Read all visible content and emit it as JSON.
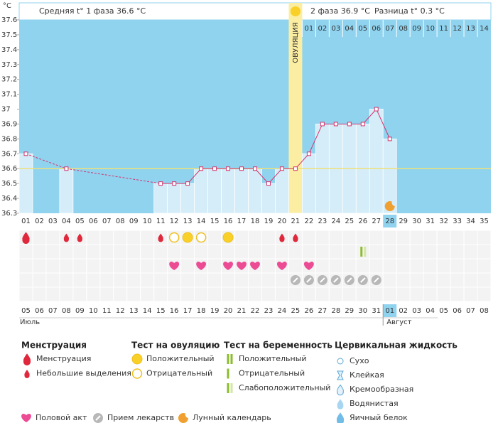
{
  "header": {
    "phase1": "Средняя t° 1 фаза 36.6 °C",
    "phase2": "2 фаза 36.9 °C",
    "diff": "Разница t° 0.3 °C"
  },
  "chart_data": {
    "type": "line",
    "y_unit": "°C",
    "ovulation_label": "ОВУЛЯЦИЯ",
    "categories": [
      "01",
      "02",
      "03",
      "04",
      "05",
      "06",
      "07",
      "08",
      "09",
      "10",
      "11",
      "12",
      "13",
      "14",
      "15",
      "16",
      "17",
      "18",
      "19",
      "20",
      "21",
      "22",
      "23",
      "24",
      "25",
      "26",
      "27",
      "28",
      "29",
      "30",
      "31",
      "32",
      "33",
      "34",
      "35"
    ],
    "dpo": [
      null,
      null,
      null,
      null,
      null,
      null,
      null,
      null,
      null,
      null,
      null,
      null,
      null,
      null,
      null,
      null,
      null,
      null,
      null,
      null,
      null,
      "01",
      "02",
      "03",
      "04",
      "05",
      "06",
      "07",
      "08",
      "09",
      "10",
      "11",
      "12",
      "13",
      "14"
    ],
    "values": [
      36.7,
      null,
      null,
      36.6,
      null,
      null,
      null,
      null,
      null,
      null,
      36.5,
      36.5,
      36.5,
      36.6,
      36.6,
      36.6,
      36.6,
      36.6,
      36.5,
      36.6,
      36.6,
      36.7,
      36.9,
      36.9,
      36.9,
      36.9,
      37,
      36.8,
      null,
      null,
      null,
      null,
      null,
      null,
      null
    ],
    "ylim": [
      36.3,
      37.6
    ],
    "yticks": [
      36.3,
      36.4,
      36.5,
      36.6,
      36.7,
      36.8,
      36.9,
      37,
      37.1,
      37.2,
      37.3,
      37.4,
      37.5,
      37.6
    ],
    "coverline": 36.6,
    "ovulation_category": "21",
    "today_category": "28",
    "colors": {
      "sky": "#8fd3ef",
      "bar": "#d4edf9",
      "line": "#d6336c",
      "ovulation": "#fbeea3",
      "coverline": "#efe07a"
    },
    "dates": [
      "05",
      "06",
      "07",
      "08",
      "09",
      {
        "label": "10",
        "color": "#cc0033"
      },
      {
        "label": "11",
        "color": "#cc0033"
      },
      "12",
      "13",
      "14",
      "15",
      "16",
      {
        "label": "17",
        "color": "#cc0033"
      },
      {
        "label": "18",
        "color": "#cc0033"
      },
      "19",
      "20",
      "21",
      "22",
      "23",
      {
        "label": "24",
        "color": "#cc0033"
      },
      {
        "label": "25",
        "color": "#cc0033"
      },
      "26",
      "27",
      "28",
      "29",
      "30",
      {
        "label": "31",
        "color": "#cc0033"
      },
      "01",
      "02",
      "03",
      "04",
      "05",
      "06",
      {
        "label": "07",
        "color": "#cc0033"
      },
      {
        "label": "08",
        "color": "#cc0033"
      }
    ],
    "months": [
      {
        "label": "Июль",
        "at": "01"
      },
      {
        "label": "Август",
        "at": "28"
      }
    ]
  },
  "marks": {
    "menstruation": [
      0,
      null,
      null,
      1,
      1,
      null,
      null,
      null,
      null,
      null,
      1,
      null,
      null,
      null,
      null,
      null,
      null,
      null,
      null,
      1,
      1,
      null,
      null,
      null,
      null,
      null,
      null,
      null,
      null,
      null,
      null,
      null,
      null,
      null,
      null
    ],
    "ovulation_test": [
      null,
      null,
      null,
      null,
      null,
      null,
      null,
      null,
      null,
      null,
      null,
      1,
      0,
      1,
      null,
      0,
      null,
      null,
      null,
      null,
      null,
      null,
      null,
      null,
      null,
      null,
      null,
      null,
      null,
      null,
      null,
      null,
      null,
      null,
      null
    ],
    "pregnancy_test": [
      null,
      null,
      null,
      null,
      null,
      null,
      null,
      null,
      null,
      null,
      null,
      null,
      null,
      null,
      null,
      null,
      null,
      null,
      null,
      null,
      null,
      null,
      null,
      null,
      null,
      2,
      null,
      null,
      null,
      null,
      null,
      null,
      null,
      null,
      null
    ],
    "intercourse": [
      null,
      null,
      null,
      null,
      null,
      null,
      null,
      null,
      null,
      null,
      null,
      0,
      null,
      0,
      null,
      0,
      0,
      0,
      null,
      0,
      null,
      0,
      null,
      null,
      null,
      null,
      null,
      null,
      null,
      null,
      null,
      null,
      null,
      null,
      null
    ],
    "medicine": [
      null,
      null,
      null,
      null,
      null,
      null,
      null,
      null,
      null,
      null,
      null,
      null,
      null,
      null,
      null,
      null,
      null,
      null,
      null,
      null,
      1,
      1,
      1,
      1,
      1,
      1,
      1,
      null,
      null,
      null,
      null,
      null,
      null,
      null,
      null
    ],
    "lunar": [
      null,
      null,
      null,
      null,
      null,
      null,
      null,
      null,
      null,
      null,
      null,
      null,
      null,
      null,
      null,
      null,
      null,
      null,
      null,
      null,
      null,
      null,
      null,
      null,
      null,
      null,
      null,
      2,
      null,
      null,
      null,
      null,
      null,
      null,
      null
    ]
  },
  "icon_colors": {
    "red": "#e0283c",
    "heart": "#ec4c94",
    "sun": "#f8d028",
    "sun_edge": "#eec020",
    "green": "#8cbc2c",
    "green_light": "#d3e6a6",
    "pill": "#b8b8b8",
    "moon": "#f0a030",
    "fluid_stroke": "#5aa8d8",
    "fluid_light": "#e4f2fb",
    "fluid": "#a8d6f2",
    "fluid_dark": "#72bce8"
  },
  "legend": {
    "menstruation": {
      "title": "Менструация",
      "items": [
        "Менструация",
        "Небольшие выделения"
      ]
    },
    "ovulation_test": {
      "title": "Тест на овуляцию",
      "items": [
        "Положительный",
        "Отрицательный"
      ]
    },
    "pregnancy_test": {
      "title": "Тест на беременность",
      "items": [
        "Положительный",
        "Отрицательный",
        "Слабоположительный"
      ]
    },
    "cervical": {
      "title": "Цервикальная жидкость",
      "items": [
        "Сухо",
        "Клейкая",
        "Кремообразная",
        "Водянистая",
        "Яичный белок"
      ]
    },
    "other": {
      "items": [
        "Половой акт",
        "Прием лекарств",
        "Лунный календарь"
      ]
    }
  }
}
